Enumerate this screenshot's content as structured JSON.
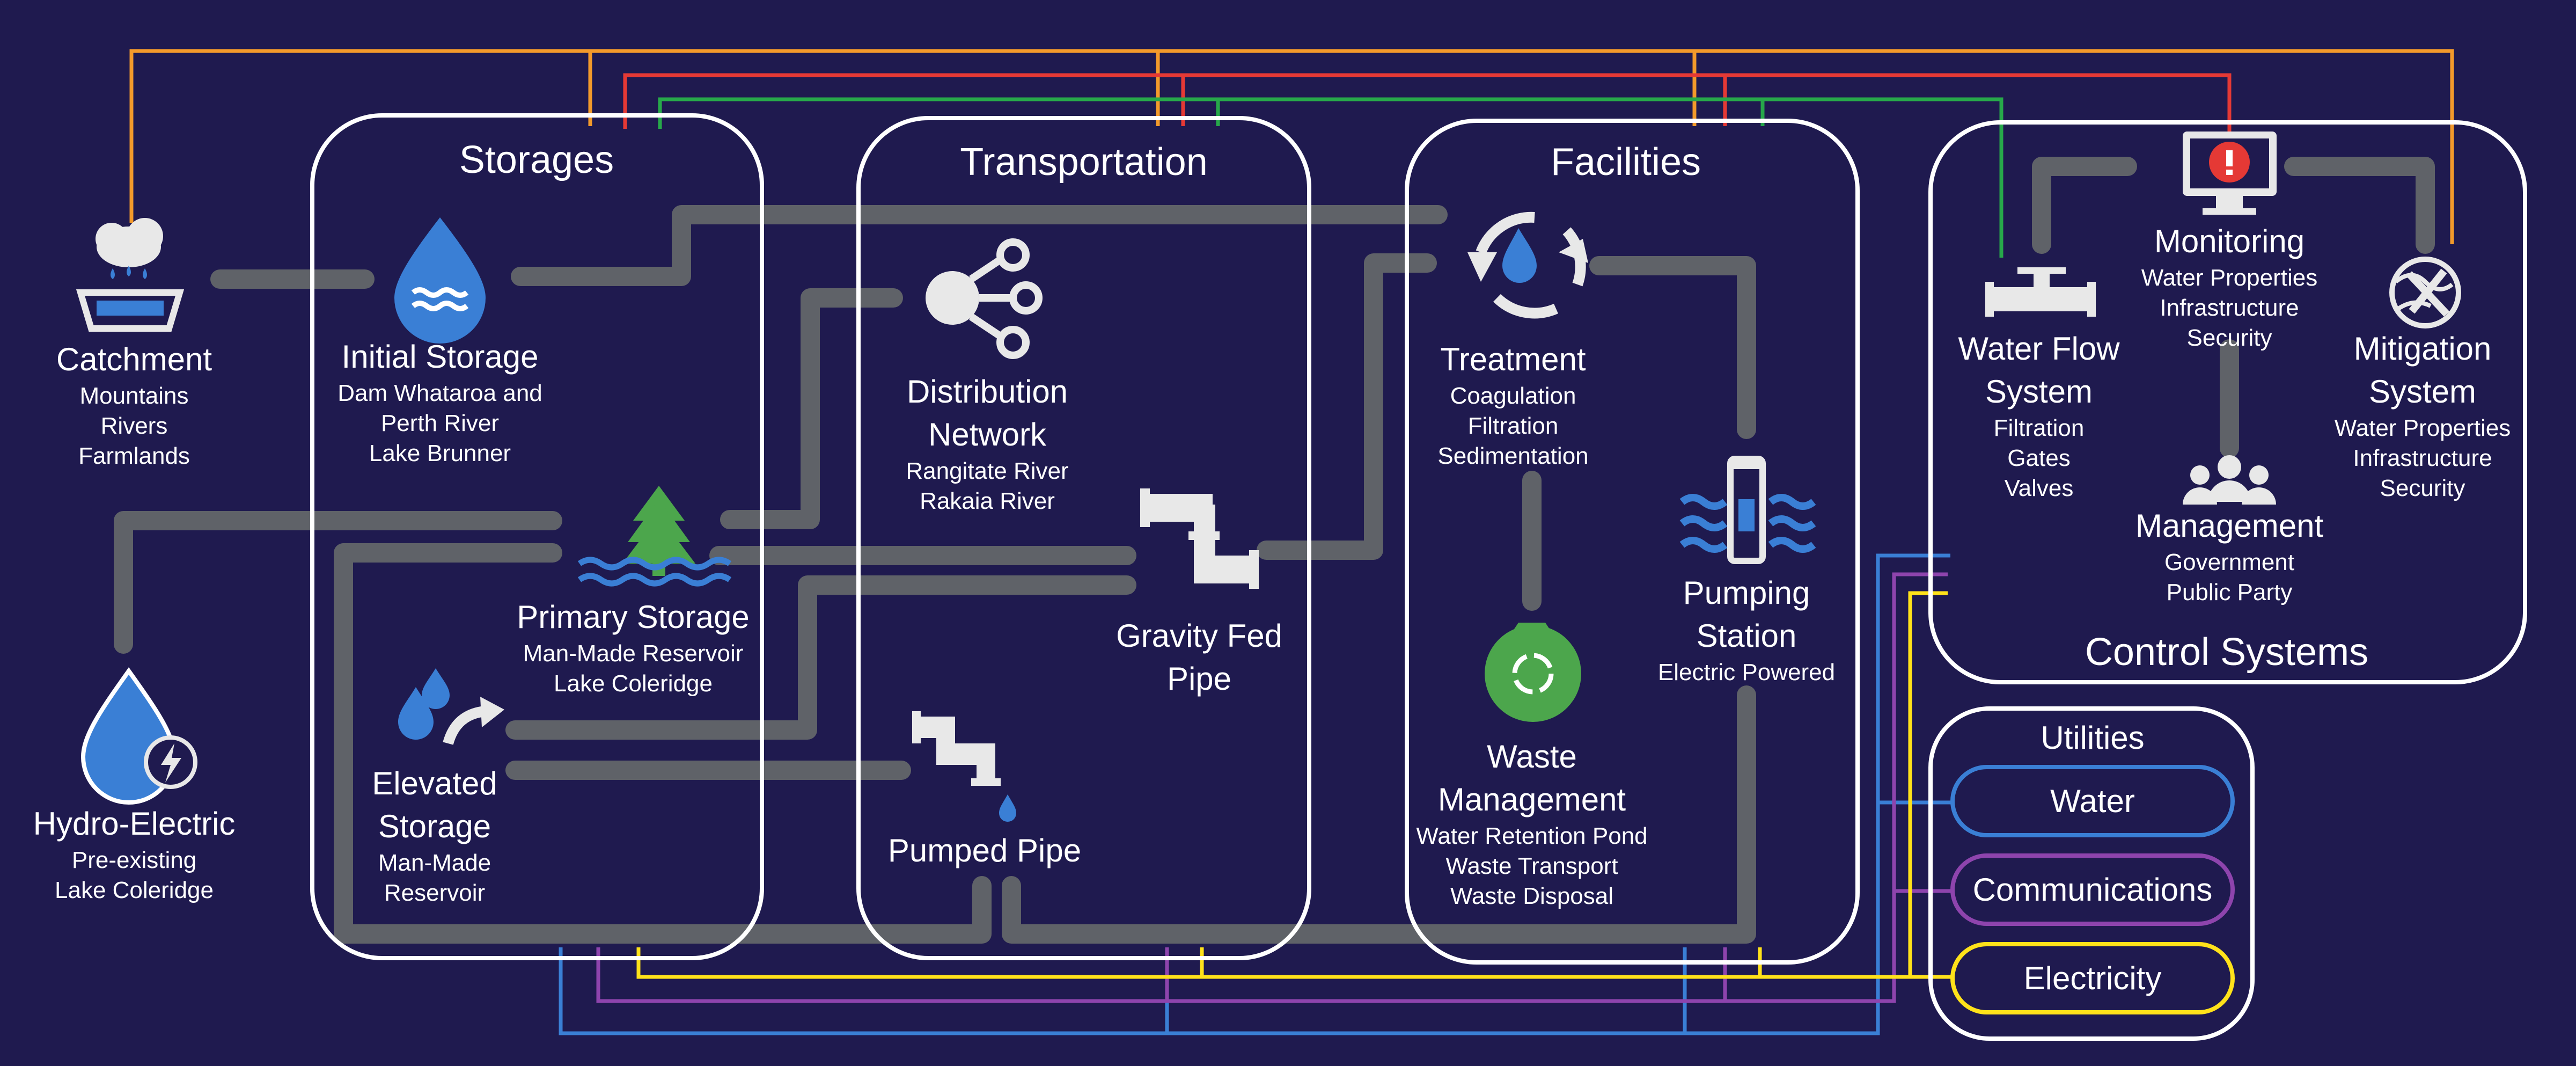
{
  "groups": {
    "storages": "Storages",
    "transportation": "Transportation",
    "facilities": "Facilities",
    "control_systems": "Control Systems",
    "utilities": "Utilities"
  },
  "nodes": {
    "catchment": {
      "title": "Catchment",
      "lines": [
        "Mountains",
        "Rivers",
        "Farmlands"
      ]
    },
    "hydro_electric": {
      "title": "Hydro-Electric",
      "lines": [
        "Pre-existing",
        "Lake Coleridge"
      ]
    },
    "initial_storage": {
      "title": "Initial Storage",
      "lines": [
        "Dam Whataroa and",
        "Perth River",
        "Lake Brunner"
      ]
    },
    "primary_storage": {
      "title": "Primary Storage",
      "lines": [
        "Man-Made Reservoir",
        "Lake Coleridge"
      ]
    },
    "elevated_storage": {
      "title_lines": [
        "Elevated",
        "Storage"
      ],
      "lines": [
        "Man-Made",
        "Reservoir"
      ]
    },
    "distribution_network": {
      "title_lines": [
        "Distribution",
        "Network"
      ],
      "lines": [
        "Rangitate River",
        "Rakaia River"
      ]
    },
    "gravity_fed_pipe": {
      "title_lines": [
        "Gravity Fed",
        "Pipe"
      ]
    },
    "pumped_pipe": {
      "title": "Pumped Pipe"
    },
    "treatment": {
      "title": "Treatment",
      "lines": [
        "Coagulation",
        "Filtration",
        "Sedimentation"
      ]
    },
    "waste_management": {
      "title_lines": [
        "Waste",
        "Management"
      ],
      "lines": [
        "Water Retention Pond",
        "Waste Transport",
        "Waste Disposal"
      ]
    },
    "pumping_station": {
      "title_lines": [
        "Pumping",
        "Station"
      ],
      "lines": [
        "Electric Powered"
      ]
    },
    "monitoring": {
      "title": "Monitoring",
      "lines": [
        "Water Properties",
        "Infrastructure",
        "Security"
      ]
    },
    "water_flow_system": {
      "title_lines": [
        "Water Flow",
        "System"
      ],
      "lines": [
        "Filtration",
        "Gates",
        "Valves"
      ]
    },
    "mitigation_system": {
      "title_lines": [
        "Mitigation",
        "System"
      ],
      "lines": [
        "Water Properties",
        "Infrastructure",
        "Security"
      ]
    },
    "management": {
      "title": "Management",
      "lines": [
        "Government",
        "Public Party"
      ]
    }
  },
  "utilities": [
    {
      "label": "Water",
      "color": "#3a7fd5"
    },
    {
      "label": "Communications",
      "color": "#8e44ad"
    },
    {
      "label": "Electricity",
      "color": "#ffe21a"
    }
  ],
  "colors": {
    "background": "#1f1a4f",
    "box_border": "#ffffff",
    "pipe": "#5f6268",
    "icon_blue": "#3a7fd5",
    "icon_green": "#4ca64c",
    "icon_grey": "#e0e0e0",
    "alert_red": "#e53935",
    "line_orange": "#f39a2b",
    "line_red": "#e53935",
    "line_green": "#27a84a"
  },
  "icons": [
    "rain-basin-icon",
    "water-drop-icon",
    "tree-icon",
    "drops-up-arrow-icon",
    "hydro-drop-bolt-icon",
    "network-node-icon",
    "elbow-pipe-icon",
    "pumped-pipe-icon",
    "recycle-drop-icon",
    "waste-bag-icon",
    "pump-tower-icon",
    "monitor-alert-icon",
    "valve-pipe-icon",
    "globe-tools-icon",
    "people-icon"
  ]
}
